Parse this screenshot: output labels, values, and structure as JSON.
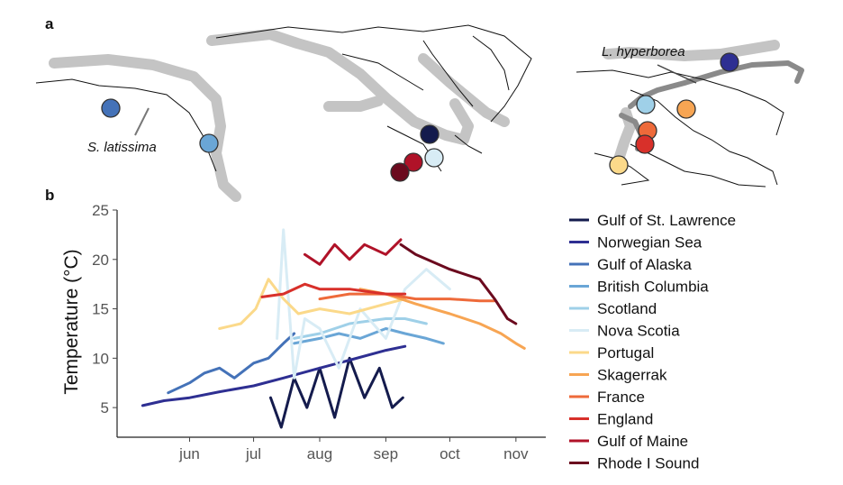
{
  "panels": {
    "a": "a",
    "b": "b"
  },
  "map": {
    "species_1": "S. latissima",
    "species_2": "L. hyperborea",
    "sites": [
      {
        "name": "Gulf of Alaska",
        "color": "#4472b8"
      },
      {
        "name": "British Columbia",
        "color": "#6aa6d6"
      },
      {
        "name": "Gulf of St. Lawrence",
        "color": "#141b4d"
      },
      {
        "name": "Nova Scotia",
        "color": "#d8ecf5"
      },
      {
        "name": "Gulf of Maine",
        "color": "#b01228"
      },
      {
        "name": "Rhode I Sound",
        "color": "#6b0a1e"
      },
      {
        "name": "Norwegian Sea",
        "color": "#2e2f92"
      },
      {
        "name": "Scotland",
        "color": "#9fd0e8"
      },
      {
        "name": "Skagerrak",
        "color": "#f7a553"
      },
      {
        "name": "France",
        "color": "#ee6a3a"
      },
      {
        "name": "England",
        "color": "#d8302a"
      },
      {
        "name": "Portugal",
        "color": "#fbd98a"
      }
    ]
  },
  "chart_data": {
    "type": "line",
    "ylabel": "Temperature (°C)",
    "xlabel": "",
    "ylim": [
      2,
      25
    ],
    "y_ticks": [
      5,
      10,
      15,
      20,
      25
    ],
    "x_ticks": [
      "jun",
      "jul",
      "aug",
      "sep",
      "oct",
      "nov"
    ],
    "grid": false,
    "legend_position": "right",
    "series": [
      {
        "name": "Gulf of St. Lawrence",
        "color": "#141b4d",
        "x": [
          "2019-07-09",
          "2019-07-14",
          "2019-07-20",
          "2019-07-26",
          "2019-08-01",
          "2019-08-08",
          "2019-08-15",
          "2019-08-22",
          "2019-08-29",
          "2019-09-04",
          "2019-09-09"
        ],
        "y": [
          6,
          3,
          8,
          5,
          9,
          4,
          10,
          6,
          9,
          5,
          6
        ]
      },
      {
        "name": "Norwegian Sea",
        "color": "#2e2f92",
        "x": [
          "2019-05-10",
          "2019-05-20",
          "2019-06-01",
          "2019-06-15",
          "2019-07-01",
          "2019-07-15",
          "2019-08-01",
          "2019-08-15",
          "2019-09-01",
          "2019-09-10"
        ],
        "y": [
          5.2,
          5.7,
          6.0,
          6.6,
          7.2,
          8.0,
          9.0,
          9.8,
          10.8,
          11.2
        ]
      },
      {
        "name": "Gulf of Alaska",
        "color": "#4472b8",
        "x": [
          "2019-05-22",
          "2019-06-01",
          "2019-06-08",
          "2019-06-15",
          "2019-06-22",
          "2019-07-01",
          "2019-07-08",
          "2019-07-15",
          "2019-07-20"
        ],
        "y": [
          6.5,
          7.5,
          8.5,
          9.0,
          8.0,
          9.5,
          10.0,
          11.5,
          12.5
        ]
      },
      {
        "name": "British Columbia",
        "color": "#6aa6d6",
        "x": [
          "2019-07-20",
          "2019-08-01",
          "2019-08-10",
          "2019-08-20",
          "2019-09-01",
          "2019-09-10",
          "2019-09-20",
          "2019-09-28"
        ],
        "y": [
          11.5,
          12.0,
          12.5,
          12.0,
          13.0,
          12.5,
          12.0,
          11.5
        ]
      },
      {
        "name": "Scotland",
        "color": "#9fd0e8",
        "x": [
          "2019-07-20",
          "2019-08-01",
          "2019-08-15",
          "2019-09-01",
          "2019-09-10",
          "2019-09-20"
        ],
        "y": [
          12.0,
          12.5,
          13.5,
          14.0,
          14.0,
          13.5
        ]
      },
      {
        "name": "Nova Scotia",
        "color": "#d8ecf5",
        "x": [
          "2019-07-12",
          "2019-07-15",
          "2019-07-20",
          "2019-07-25",
          "2019-08-01",
          "2019-08-10",
          "2019-08-20",
          "2019-09-01",
          "2019-09-10",
          "2019-09-20",
          "2019-10-01"
        ],
        "y": [
          12,
          23,
          8,
          14,
          13,
          9,
          15,
          12,
          17,
          19,
          17
        ]
      },
      {
        "name": "Portugal",
        "color": "#fbd98a",
        "x": [
          "2019-06-15",
          "2019-06-25",
          "2019-07-02",
          "2019-07-08",
          "2019-07-15",
          "2019-07-22",
          "2019-08-01",
          "2019-08-15",
          "2019-09-01",
          "2019-09-10"
        ],
        "y": [
          13.0,
          13.5,
          15.0,
          18.0,
          16.0,
          14.5,
          15.0,
          14.5,
          15.5,
          16.0
        ]
      },
      {
        "name": "Skagerrak",
        "color": "#f7a553",
        "x": [
          "2019-08-20",
          "2019-09-01",
          "2019-09-15",
          "2019-10-01",
          "2019-10-15",
          "2019-10-25",
          "2019-11-01",
          "2019-11-05"
        ],
        "y": [
          17.0,
          16.5,
          15.5,
          14.5,
          13.5,
          12.5,
          11.5,
          11.0
        ]
      },
      {
        "name": "France",
        "color": "#ee6a3a",
        "x": [
          "2019-08-01",
          "2019-08-15",
          "2019-09-01",
          "2019-09-15",
          "2019-10-01",
          "2019-10-15",
          "2019-10-22"
        ],
        "y": [
          16.0,
          16.5,
          16.5,
          16.0,
          16.0,
          15.8,
          15.8
        ]
      },
      {
        "name": "England",
        "color": "#d8302a",
        "x": [
          "2019-07-05",
          "2019-07-15",
          "2019-07-25",
          "2019-08-01",
          "2019-08-15",
          "2019-09-01",
          "2019-09-10"
        ],
        "y": [
          16.2,
          16.5,
          17.5,
          17.0,
          17.0,
          16.5,
          16.5
        ]
      },
      {
        "name": "Gulf of Maine",
        "color": "#b01228",
        "x": [
          "2019-07-25",
          "2019-08-01",
          "2019-08-08",
          "2019-08-15",
          "2019-08-22",
          "2019-09-01",
          "2019-09-08"
        ],
        "y": [
          20.5,
          19.5,
          21.5,
          20.0,
          21.5,
          20.5,
          22.0
        ]
      },
      {
        "name": "Rhode I Sound",
        "color": "#6b0a1e",
        "x": [
          "2019-09-08",
          "2019-09-15",
          "2019-10-01",
          "2019-10-15",
          "2019-10-22",
          "2019-10-28",
          "2019-11-01"
        ],
        "y": [
          21.5,
          20.5,
          19.0,
          18.0,
          16.0,
          14.0,
          13.5
        ]
      }
    ]
  }
}
